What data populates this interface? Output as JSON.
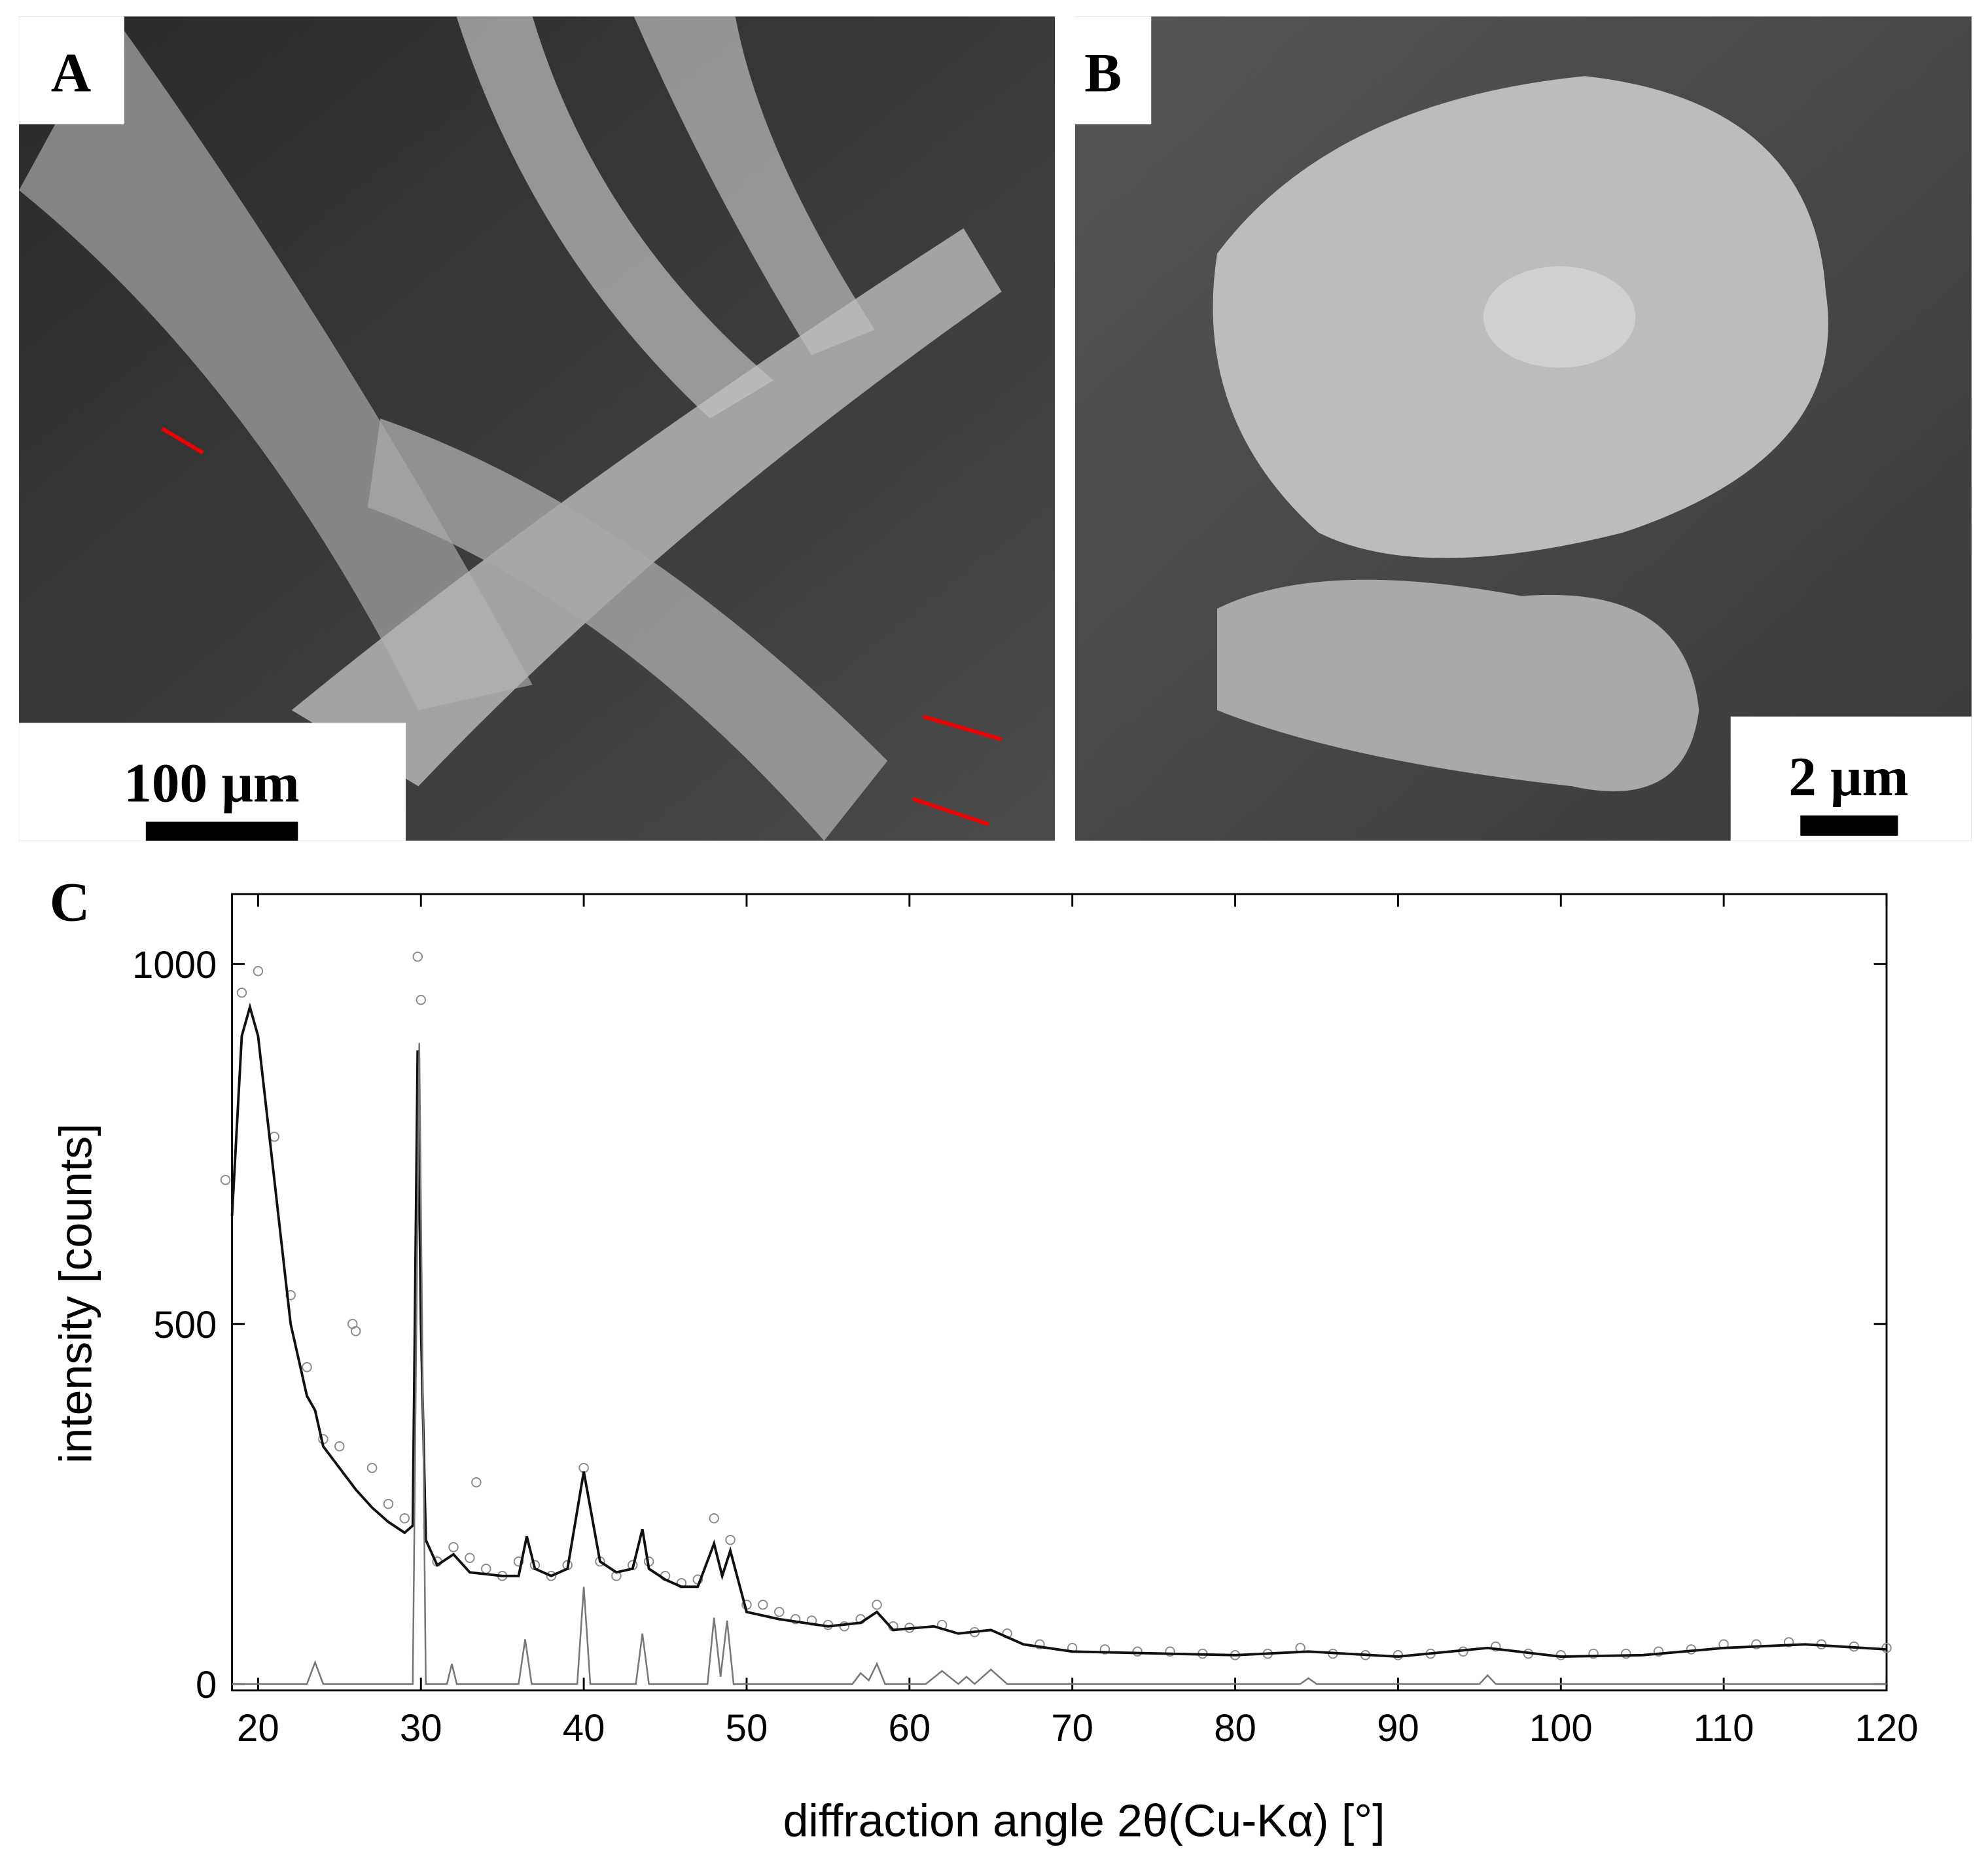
{
  "panels": [
    {
      "label": "A",
      "scale_bar": "100 μm"
    },
    {
      "label": "B",
      "scale_bar": "2 μm"
    }
  ],
  "chart_data": {
    "type": "line",
    "label": "C",
    "xlabel": "diffraction angle 2θ(Cu-Kα) [°]",
    "ylabel": "intensity [counts]",
    "xlim": [
      18.4,
      120
    ],
    "ylim": [
      -9,
      1097
    ],
    "xticks": [
      20,
      30,
      40,
      50,
      60,
      70,
      80,
      90,
      100,
      110,
      120
    ],
    "yticks": [
      0,
      500,
      1000
    ],
    "series": [
      {
        "color": "#8a8a8a",
        "marker": "circle",
        "x": [
          18,
          19,
          20,
          21,
          22,
          23,
          24,
          25,
          25.8,
          26,
          27,
          28,
          29,
          29.8,
          30,
          31,
          32,
          33,
          33.4,
          34,
          35,
          36,
          37,
          38,
          39,
          40,
          41,
          42,
          43,
          44,
          45,
          46,
          47,
          48,
          49,
          50,
          51,
          52,
          53,
          54,
          55,
          56,
          57,
          58,
          59,
          60,
          62,
          64,
          66,
          68,
          70,
          72,
          74,
          76,
          78,
          80,
          82,
          84,
          86,
          88,
          90,
          92,
          94,
          96,
          98,
          100,
          102,
          104,
          106,
          108,
          110,
          112,
          114,
          116,
          118,
          120
        ],
        "values": [
          700,
          960,
          990,
          760,
          540,
          440,
          340,
          330,
          500,
          490,
          300,
          250,
          230,
          1010,
          950,
          170,
          190,
          175,
          280,
          160,
          150,
          170,
          165,
          150,
          165,
          300,
          170,
          150,
          165,
          170,
          150,
          140,
          145,
          230,
          200,
          110,
          110,
          100,
          90,
          88,
          82,
          80,
          90,
          110,
          80,
          78,
          82,
          72,
          70,
          55,
          50,
          48,
          45,
          45,
          42,
          40,
          42,
          50,
          42,
          40,
          40,
          42,
          45,
          52,
          42,
          40,
          42,
          42,
          45,
          48,
          55,
          55,
          58,
          55,
          52,
          50
        ]
      },
      {
        "color": "#111111",
        "x": [
          18.4,
          19,
          19.5,
          20,
          21,
          22,
          23,
          23.5,
          24,
          25,
          26,
          27,
          28,
          29,
          29.5,
          29.8,
          30,
          30.3,
          31,
          32,
          33,
          35,
          36,
          36.5,
          37,
          38,
          39,
          40,
          41,
          42,
          43,
          43.6,
          44,
          45,
          46,
          47,
          48,
          48.5,
          49,
          50,
          52,
          55,
          57,
          58,
          59,
          61.5,
          63,
          65,
          67,
          70,
          80,
          84.5,
          90,
          95.5,
          100,
          105,
          110,
          115,
          120
        ],
        "values": [
          650,
          900,
          940,
          900,
          700,
          500,
          400,
          380,
          330,
          300,
          270,
          245,
          225,
          210,
          220,
          880,
          500,
          200,
          165,
          180,
          155,
          150,
          150,
          205,
          160,
          150,
          160,
          295,
          170,
          155,
          160,
          215,
          160,
          145,
          135,
          135,
          195,
          150,
          185,
          100,
          90,
          80,
          85,
          100,
          75,
          80,
          70,
          75,
          55,
          45,
          40,
          45,
          38,
          50,
          38,
          40,
          50,
          55,
          48
        ]
      },
      {
        "color": "#777777",
        "x": [
          18.4,
          23,
          23.5,
          24,
          29.5,
          29.9,
          30.3,
          31.6,
          31.9,
          32.2,
          36,
          36.4,
          36.8,
          39.6,
          40,
          40.4,
          43.2,
          43.6,
          44,
          47.6,
          48,
          48.4,
          48.8,
          49.2,
          49.6,
          56.5,
          57,
          57.5,
          58,
          58.5,
          61,
          62,
          63,
          63.5,
          64,
          65,
          66,
          68,
          84,
          84.5,
          85,
          95,
          95.5,
          96,
          120
        ],
        "values": [
          0,
          0,
          30,
          0,
          0,
          890,
          0,
          0,
          28,
          0,
          0,
          62,
          0,
          0,
          135,
          0,
          0,
          70,
          0,
          0,
          92,
          10,
          88,
          0,
          0,
          0,
          15,
          5,
          28,
          0,
          0,
          18,
          0,
          10,
          0,
          20,
          0,
          0,
          0,
          8,
          0,
          0,
          12,
          0,
          0
        ]
      }
    ]
  }
}
